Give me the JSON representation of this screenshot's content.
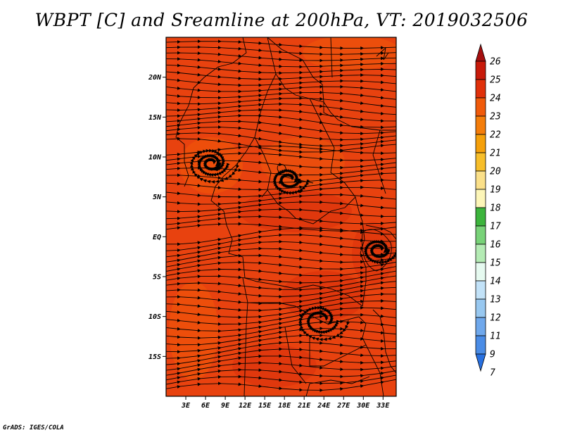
{
  "title": "WBPT [C] and Sreamline at 200hPa, VT: 2019032506",
  "credit": "GrADS: IGES/COLA",
  "map": {
    "field_color": "#e8420f",
    "lat_labels": [
      {
        "text": "20N",
        "lat": 20
      },
      {
        "text": "15N",
        "lat": 15
      },
      {
        "text": "10N",
        "lat": 10
      },
      {
        "text": "5N",
        "lat": 5
      },
      {
        "text": "EQ",
        "lat": 0
      },
      {
        "text": "5S",
        "lat": -5
      },
      {
        "text": "10S",
        "lat": -10
      },
      {
        "text": "15S",
        "lat": -15
      }
    ],
    "lon_labels": [
      {
        "text": "3E",
        "lon": 3
      },
      {
        "text": "6E",
        "lon": 6
      },
      {
        "text": "9E",
        "lon": 9
      },
      {
        "text": "12E",
        "lon": 12
      },
      {
        "text": "15E",
        "lon": 15
      },
      {
        "text": "18E",
        "lon": 18
      },
      {
        "text": "21E",
        "lon": 21
      },
      {
        "text": "24E",
        "lon": 24
      },
      {
        "text": "27E",
        "lon": 27
      },
      {
        "text": "30E",
        "lon": 30
      },
      {
        "text": "33E",
        "lon": 33
      }
    ],
    "lon_range": [
      0,
      35
    ],
    "lat_range": [
      -20,
      25
    ]
  },
  "colorbar": {
    "labels": [
      "26",
      "25",
      "24",
      "23",
      "22",
      "21",
      "20",
      "19",
      "18",
      "17",
      "16",
      "15",
      "14",
      "13",
      "12",
      "11",
      "9",
      "7"
    ],
    "colors": [
      "#a50f0f",
      "#c81a0a",
      "#e0300a",
      "#f05a0a",
      "#f47d0a",
      "#f5a00a",
      "#f7be2a",
      "#fbe089",
      "#fdf6b8",
      "#3cb43c",
      "#78d278",
      "#b4ebb4",
      "#e6faf0",
      "#c2e2f8",
      "#98c8f0",
      "#6fa8ec",
      "#4a8ce6",
      "#2870e0"
    ]
  }
}
